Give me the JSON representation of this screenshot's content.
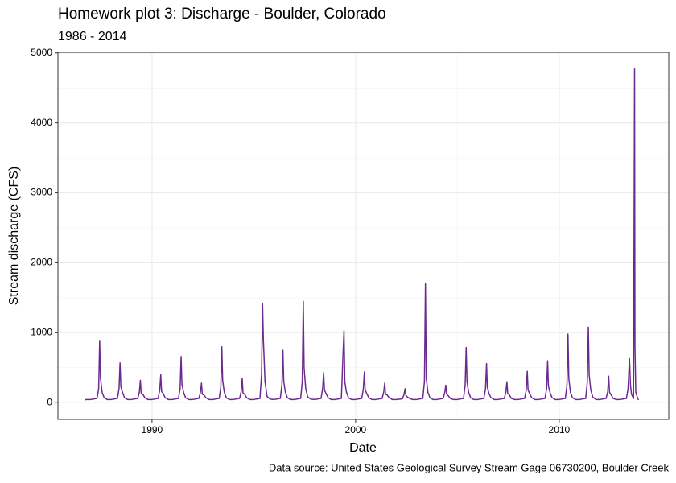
{
  "chart_data": {
    "type": "line",
    "title": "Homework plot 3: Discharge - Boulder, Colorado",
    "subtitle": "1986 - 2014",
    "x_label": "Date",
    "y_label": "Stream discharge (CFS)",
    "caption": "Data source: United States Geological Survey Stream Gage 06730200, Boulder Creek",
    "x": [
      1986.7,
      1986.8,
      1987.0,
      1987.3,
      1987.38,
      1987.43,
      1987.47,
      1987.55,
      1987.65,
      1987.8,
      1988.0,
      1988.3,
      1988.38,
      1988.43,
      1988.47,
      1988.55,
      1988.65,
      1988.8,
      1989.0,
      1989.3,
      1989.38,
      1989.43,
      1989.47,
      1989.55,
      1989.65,
      1989.8,
      1990.0,
      1990.3,
      1990.38,
      1990.43,
      1990.47,
      1990.55,
      1990.65,
      1990.8,
      1991.0,
      1991.3,
      1991.38,
      1991.43,
      1991.47,
      1991.55,
      1991.65,
      1991.8,
      1992.0,
      1992.3,
      1992.38,
      1992.43,
      1992.47,
      1992.55,
      1992.65,
      1992.8,
      1993.0,
      1993.3,
      1993.38,
      1993.43,
      1993.47,
      1993.55,
      1993.65,
      1993.8,
      1994.0,
      1994.3,
      1994.38,
      1994.43,
      1994.47,
      1994.55,
      1994.65,
      1994.8,
      1995.0,
      1995.3,
      1995.38,
      1995.43,
      1995.47,
      1995.55,
      1995.65,
      1995.8,
      1996.0,
      1996.3,
      1996.38,
      1996.43,
      1996.47,
      1996.55,
      1996.65,
      1996.8,
      1997.0,
      1997.3,
      1997.38,
      1997.43,
      1997.47,
      1997.55,
      1997.65,
      1997.8,
      1998.0,
      1998.3,
      1998.38,
      1998.43,
      1998.47,
      1998.55,
      1998.65,
      1998.8,
      1999.0,
      1999.3,
      1999.38,
      1999.43,
      1999.47,
      1999.55,
      1999.65,
      1999.8,
      2000.0,
      2000.3,
      2000.38,
      2000.43,
      2000.47,
      2000.55,
      2000.65,
      2000.8,
      2001.0,
      2001.3,
      2001.38,
      2001.43,
      2001.47,
      2001.55,
      2001.65,
      2001.8,
      2002.0,
      2002.3,
      2002.38,
      2002.43,
      2002.47,
      2002.55,
      2002.65,
      2002.8,
      2003.0,
      2003.3,
      2003.38,
      2003.43,
      2003.47,
      2003.55,
      2003.65,
      2003.8,
      2004.0,
      2004.3,
      2004.38,
      2004.43,
      2004.47,
      2004.55,
      2004.65,
      2004.8,
      2005.0,
      2005.3,
      2005.38,
      2005.43,
      2005.47,
      2005.55,
      2005.65,
      2005.8,
      2006.0,
      2006.3,
      2006.38,
      2006.43,
      2006.47,
      2006.55,
      2006.65,
      2006.8,
      2007.0,
      2007.3,
      2007.38,
      2007.43,
      2007.47,
      2007.55,
      2007.65,
      2007.8,
      2008.0,
      2008.3,
      2008.38,
      2008.43,
      2008.47,
      2008.55,
      2008.65,
      2008.8,
      2009.0,
      2009.3,
      2009.38,
      2009.43,
      2009.47,
      2009.55,
      2009.65,
      2009.8,
      2010.0,
      2010.3,
      2010.38,
      2010.43,
      2010.47,
      2010.55,
      2010.65,
      2010.8,
      2011.0,
      2011.3,
      2011.38,
      2011.43,
      2011.47,
      2011.55,
      2011.65,
      2011.8,
      2012.0,
      2012.3,
      2012.38,
      2012.43,
      2012.47,
      2012.55,
      2012.65,
      2012.8,
      2013.0,
      2013.3,
      2013.38,
      2013.45,
      2013.5,
      2013.55,
      2013.65,
      2013.7,
      2013.72,
      2013.76,
      2013.85,
      2013.9
    ],
    "series": [
      {
        "name": "Discharge",
        "color": "#6b2a8f",
        "values": [
          40,
          45,
          45,
          60,
          200,
          890,
          350,
          150,
          70,
          45,
          45,
          60,
          200,
          570,
          230,
          150,
          70,
          45,
          45,
          60,
          150,
          320,
          130,
          120,
          70,
          45,
          45,
          60,
          180,
          400,
          160,
          130,
          70,
          45,
          45,
          60,
          200,
          660,
          260,
          150,
          70,
          45,
          45,
          60,
          150,
          280,
          120,
          110,
          70,
          45,
          45,
          60,
          220,
          800,
          320,
          150,
          70,
          45,
          45,
          60,
          160,
          350,
          140,
          120,
          70,
          45,
          45,
          60,
          400,
          1420,
          900,
          300,
          90,
          50,
          45,
          60,
          250,
          750,
          300,
          150,
          70,
          45,
          45,
          60,
          300,
          1450,
          500,
          200,
          80,
          50,
          45,
          60,
          200,
          430,
          180,
          130,
          70,
          45,
          45,
          60,
          680,
          1030,
          300,
          150,
          70,
          45,
          45,
          60,
          200,
          440,
          180,
          130,
          70,
          45,
          45,
          60,
          150,
          280,
          120,
          110,
          70,
          45,
          45,
          55,
          120,
          200,
          100,
          80,
          60,
          45,
          45,
          60,
          300,
          1700,
          350,
          150,
          70,
          45,
          45,
          60,
          150,
          250,
          120,
          100,
          60,
          45,
          45,
          60,
          250,
          790,
          300,
          150,
          70,
          45,
          45,
          60,
          200,
          560,
          220,
          130,
          70,
          45,
          45,
          60,
          150,
          300,
          130,
          110,
          60,
          45,
          45,
          60,
          180,
          450,
          180,
          130,
          70,
          45,
          45,
          60,
          200,
          600,
          240,
          140,
          70,
          45,
          45,
          60,
          250,
          980,
          350,
          150,
          70,
          45,
          45,
          60,
          300,
          1080,
          400,
          180,
          80,
          45,
          45,
          60,
          150,
          380,
          150,
          110,
          60,
          45,
          45,
          60,
          200,
          630,
          250,
          120,
          60,
          4770,
          800,
          150,
          60,
          40
        ]
      }
    ],
    "xlim": [
      1985.38,
      2015.38
    ],
    "xticks": [
      1990,
      2000,
      2010
    ],
    "xminorticks": [
      1995,
      2005
    ],
    "ylim": [
      -239,
      5009
    ],
    "yticks": [
      0,
      1000,
      2000,
      3000,
      4000,
      5000
    ],
    "yminorticks": [
      500,
      1500,
      2500,
      3500,
      4500
    ],
    "grid": true
  }
}
